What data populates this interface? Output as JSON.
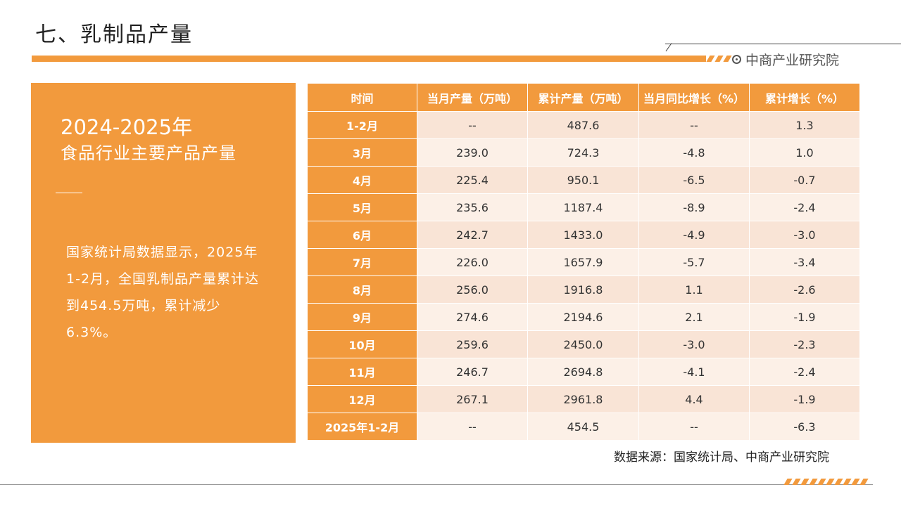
{
  "title": "七、乳制品产量",
  "brand": {
    "name": "中商产业研究院",
    "icon": "target-icon"
  },
  "left_panel": {
    "year": "2024-2025年",
    "subtitle": "食品行业主要产品产量",
    "paragraph": "国家统计局数据显示，2025年1-2月，全国乳制品产量累计达到454.5万吨，累计减少6.3%。"
  },
  "table": {
    "headers": [
      "时间",
      "当月产量（万吨）",
      "累计产量（万吨）",
      "当月同比增长（%）",
      "累计增长（%）"
    ],
    "rows": [
      [
        "1-2月",
        "--",
        "487.6",
        "--",
        "1.3"
      ],
      [
        "3月",
        "239.0",
        "724.3",
        "-4.8",
        "1.0"
      ],
      [
        "4月",
        "225.4",
        "950.1",
        "-6.5",
        "-0.7"
      ],
      [
        "5月",
        "235.6",
        "1187.4",
        "-8.9",
        "-2.4"
      ],
      [
        "6月",
        "242.7",
        "1433.0",
        "-4.9",
        "-3.0"
      ],
      [
        "7月",
        "226.0",
        "1657.9",
        "-5.7",
        "-3.4"
      ],
      [
        "8月",
        "256.0",
        "1916.8",
        "1.1",
        "-2.6"
      ],
      [
        "9月",
        "274.6",
        "2194.6",
        "2.1",
        "-1.9"
      ],
      [
        "10月",
        "259.6",
        "2450.0",
        "-3.0",
        "-2.3"
      ],
      [
        "11月",
        "246.7",
        "2694.8",
        "-4.1",
        "-2.4"
      ],
      [
        "12月",
        "267.1",
        "2961.8",
        "4.4",
        "-1.9"
      ],
      [
        "2025年1-2月",
        "--",
        "454.5",
        "--",
        "-6.3"
      ]
    ]
  },
  "source": "数据来源：国家统计局、中商产业研究院",
  "colors": {
    "accent": "#f29a3d",
    "row_light": "#fcf0e7",
    "row_dark": "#f9e4d6"
  }
}
